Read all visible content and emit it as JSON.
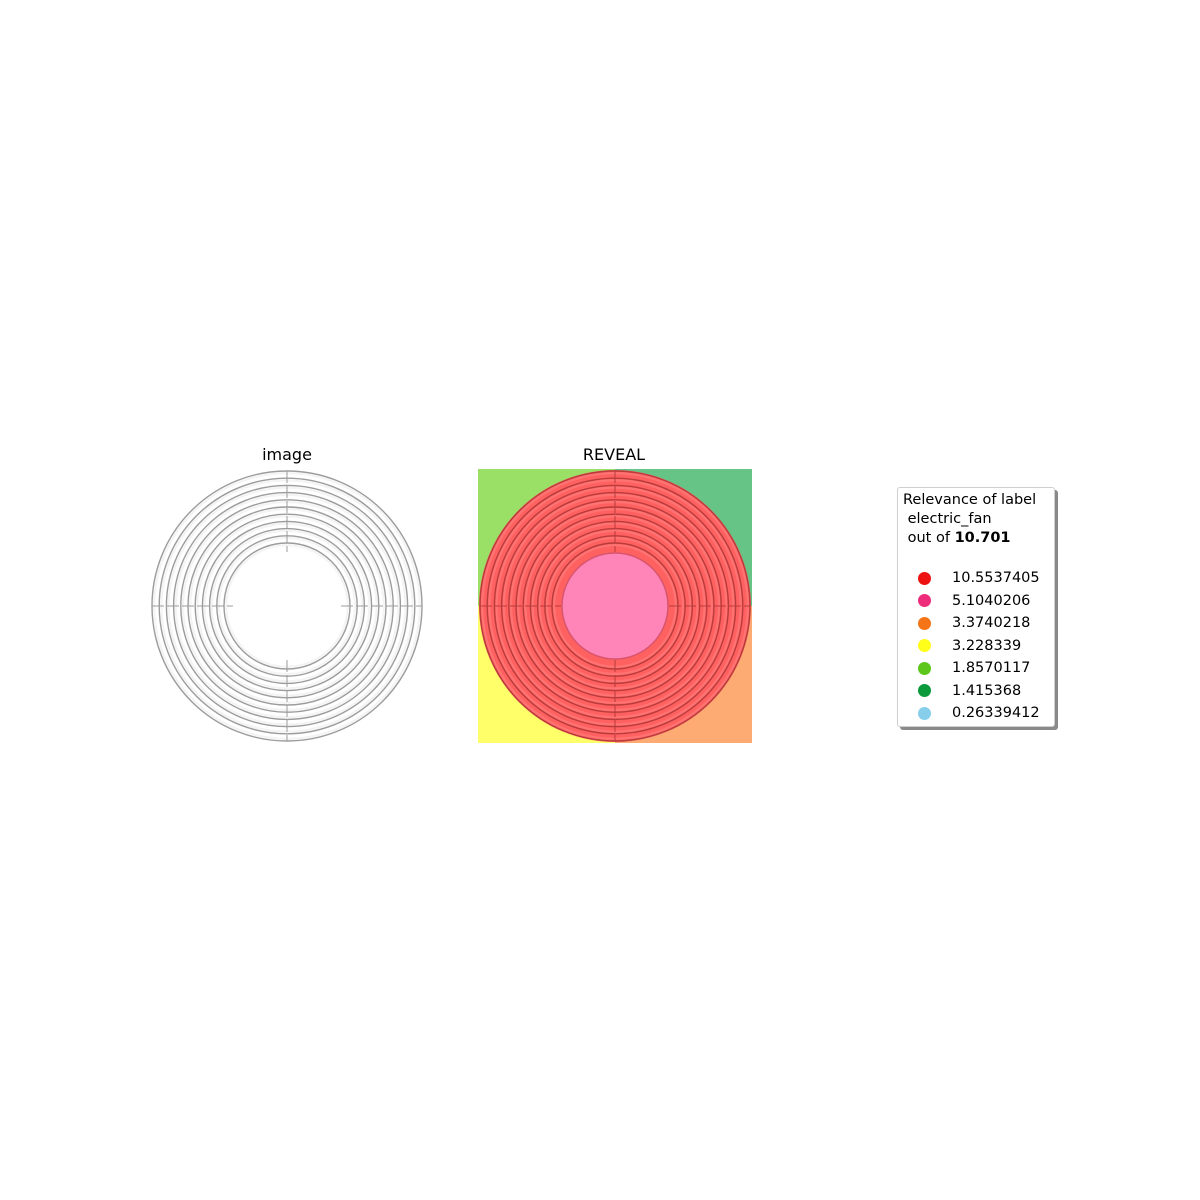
{
  "panels": {
    "image_title": "image",
    "reveal_title": "REVEAL"
  },
  "legend": {
    "title_line1": "Relevance of label",
    "title_line2": " electric_fan",
    "title_line3_prefix": " out of ",
    "title_line3_value": "10.701",
    "items": [
      {
        "label": "10.5537405",
        "color": "#ee1111"
      },
      {
        "label": "5.1040206",
        "color": "#ee2d7a"
      },
      {
        "label": "3.3740218",
        "color": "#f57417"
      },
      {
        "label": "3.228339",
        "color": "#ffff1a"
      },
      {
        "label": "1.8570117",
        "color": "#5cc61b"
      },
      {
        "label": "1.415368",
        "color": "#0a9a3c"
      },
      {
        "label": "0.26339412",
        "color": "#87ceeb"
      }
    ]
  },
  "reveal_regions": {
    "top_left": "#9be066",
    "top_right": "#66c486",
    "bottom_left": "#ffff6a",
    "bottom_right": "#fdab72",
    "ring": "#ff6060",
    "center": "#ff85b8"
  }
}
